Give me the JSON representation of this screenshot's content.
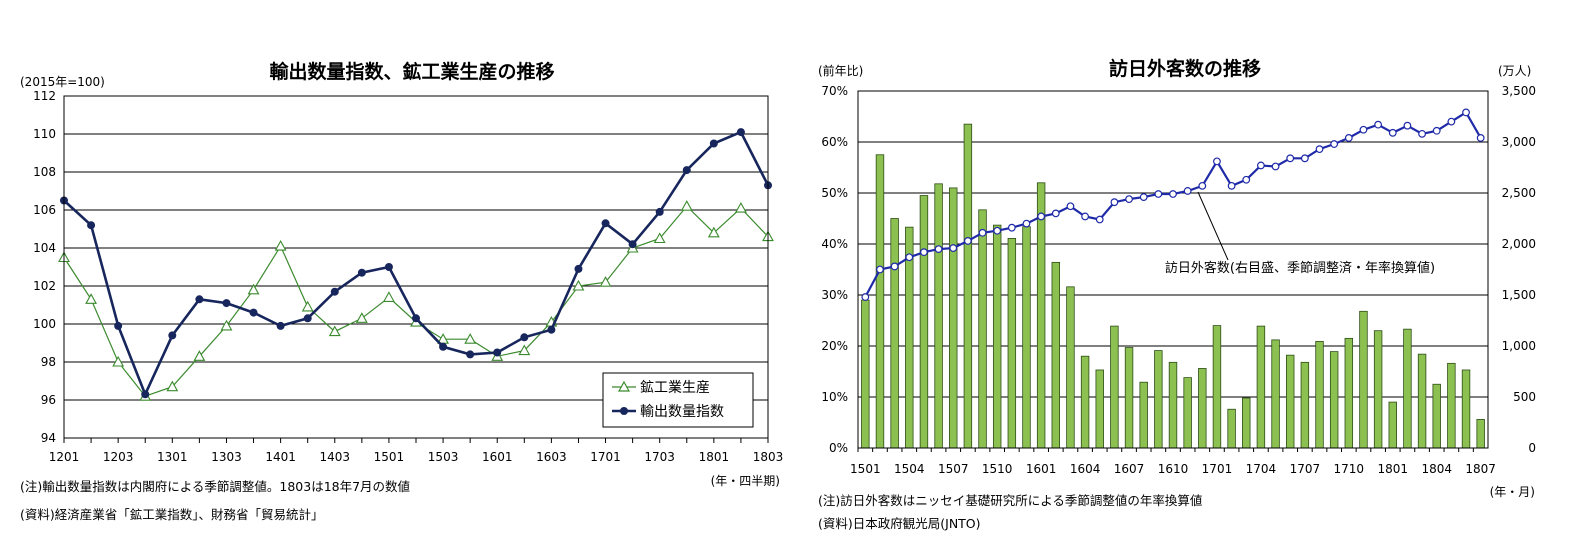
{
  "chart_data": [
    {
      "type": "line",
      "title": "輸出数量指数、鉱工業生産の推移",
      "unit_label": "(2015年=100)",
      "x_unit": "(年・四半期)",
      "categories": [
        "1201",
        "1202",
        "1203",
        "1204",
        "1301",
        "1302",
        "1303",
        "1304",
        "1401",
        "1402",
        "1403",
        "1404",
        "1501",
        "1502",
        "1503",
        "1504",
        "1601",
        "1602",
        "1603",
        "1604",
        "1701",
        "1702",
        "1703",
        "1704",
        "1801",
        "1802",
        "1803"
      ],
      "x_tick_labels": [
        "1201",
        "1203",
        "1301",
        "1303",
        "1401",
        "1403",
        "1501",
        "1503",
        "1601",
        "1603",
        "1701",
        "1703",
        "1801",
        "1803"
      ],
      "ylim": [
        94,
        112
      ],
      "y_ticks": [
        "94",
        "96",
        "98",
        "100",
        "102",
        "104",
        "106",
        "108",
        "110",
        "112"
      ],
      "grid": true,
      "legend_position": "bottom-right",
      "series": [
        {
          "name": "鉱工業生産",
          "color": "#3b8a2e",
          "marker": "triangle-open",
          "values": [
            103.5,
            101.3,
            98.0,
            96.2,
            96.7,
            98.3,
            99.9,
            101.8,
            104.1,
            100.9,
            99.6,
            100.3,
            101.4,
            100.1,
            99.2,
            99.2,
            98.3,
            98.6,
            100.1,
            102.0,
            102.2,
            104.0,
            104.5,
            106.2,
            104.8,
            106.1,
            104.6
          ]
        },
        {
          "name": "輸出数量指数",
          "color": "#17265c",
          "marker": "circle-filled",
          "values": [
            106.5,
            105.2,
            99.9,
            96.3,
            99.4,
            101.3,
            101.1,
            100.6,
            99.9,
            100.3,
            101.7,
            102.7,
            103.0,
            100.3,
            98.8,
            98.4,
            98.5,
            99.3,
            99.7,
            102.9,
            105.3,
            104.2,
            105.9,
            108.1,
            109.5,
            110.1,
            107.3
          ]
        }
      ],
      "notes": [
        "(注)輸出数量指数は内閣府による季節調整値。1803は18年7月の数値",
        "(資料)経済産業省「鉱工業指数」、財務省「貿易統計」"
      ]
    },
    {
      "type": "bar",
      "title": "訪日外客数の推移",
      "ylabel_left": "(前年比)",
      "ylabel_right": "(万人)",
      "x_unit": "(年・月)",
      "categories": [
        "1501",
        "1502",
        "1503",
        "1504",
        "1505",
        "1506",
        "1507",
        "1508",
        "1509",
        "1510",
        "1511",
        "1512",
        "1601",
        "1602",
        "1603",
        "1604",
        "1605",
        "1606",
        "1607",
        "1608",
        "1609",
        "1610",
        "1611",
        "1612",
        "1701",
        "1702",
        "1703",
        "1704",
        "1705",
        "1706",
        "1707",
        "1708",
        "1709",
        "1710",
        "1711",
        "1712",
        "1801",
        "1802",
        "1803",
        "1804",
        "1805",
        "1806",
        "1807"
      ],
      "x_tick_labels": [
        "1501",
        "1504",
        "1507",
        "1510",
        "1601",
        "1604",
        "1607",
        "1610",
        "1701",
        "1704",
        "1707",
        "1710",
        "1801",
        "1804",
        "1807"
      ],
      "ylim_left": [
        0,
        70
      ],
      "ylim_right": [
        0,
        3500
      ],
      "y_ticks_left": [
        "0%",
        "10%",
        "20%",
        "30%",
        "40%",
        "50%",
        "60%",
        "70%"
      ],
      "y_ticks_right": [
        "0",
        "500",
        "1,000",
        "1,500",
        "2,000",
        "2,500",
        "3,000",
        "3,500"
      ],
      "grid": true,
      "bar_series": {
        "name": "前年比",
        "color": "#8cc152",
        "values": [
          29,
          57.5,
          45,
          43.3,
          49.5,
          51.8,
          51,
          63.5,
          46.7,
          43.7,
          41.1,
          43.4,
          52,
          36.4,
          31.6,
          18,
          15.3,
          23.9,
          19.7,
          12.9,
          19.1,
          16.8,
          13.8,
          15.6,
          24,
          7.6,
          9.8,
          23.9,
          21.2,
          18.2,
          16.8,
          20.9,
          18.9,
          21.5,
          26.8,
          23,
          9,
          23.3,
          18.4,
          12.5,
          16.6,
          15.3,
          5.6
        ]
      },
      "line_series": {
        "name": "訪日外客数(右目盛、季節調整済・年率換算値)",
        "color": "#1f2aa8",
        "values": [
          1480,
          1750,
          1780,
          1870,
          1920,
          1950,
          1960,
          2030,
          2110,
          2130,
          2160,
          2200,
          2270,
          2300,
          2370,
          2270,
          2240,
          2410,
          2440,
          2460,
          2490,
          2490,
          2520,
          2570,
          2810,
          2570,
          2630,
          2770,
          2760,
          2840,
          2840,
          2930,
          2980,
          3040,
          3120,
          3170,
          3090,
          3160,
          3080,
          3110,
          3200,
          3290,
          3040
        ]
      },
      "annotation": "訪日外客数(右目盛、季節調整済・年率換算値)",
      "notes": [
        "(注)訪日外客数はニッセイ基礎研究所による季節調整値の年率換算値",
        "(資料)日本政府観光局(JNTO)"
      ]
    }
  ]
}
